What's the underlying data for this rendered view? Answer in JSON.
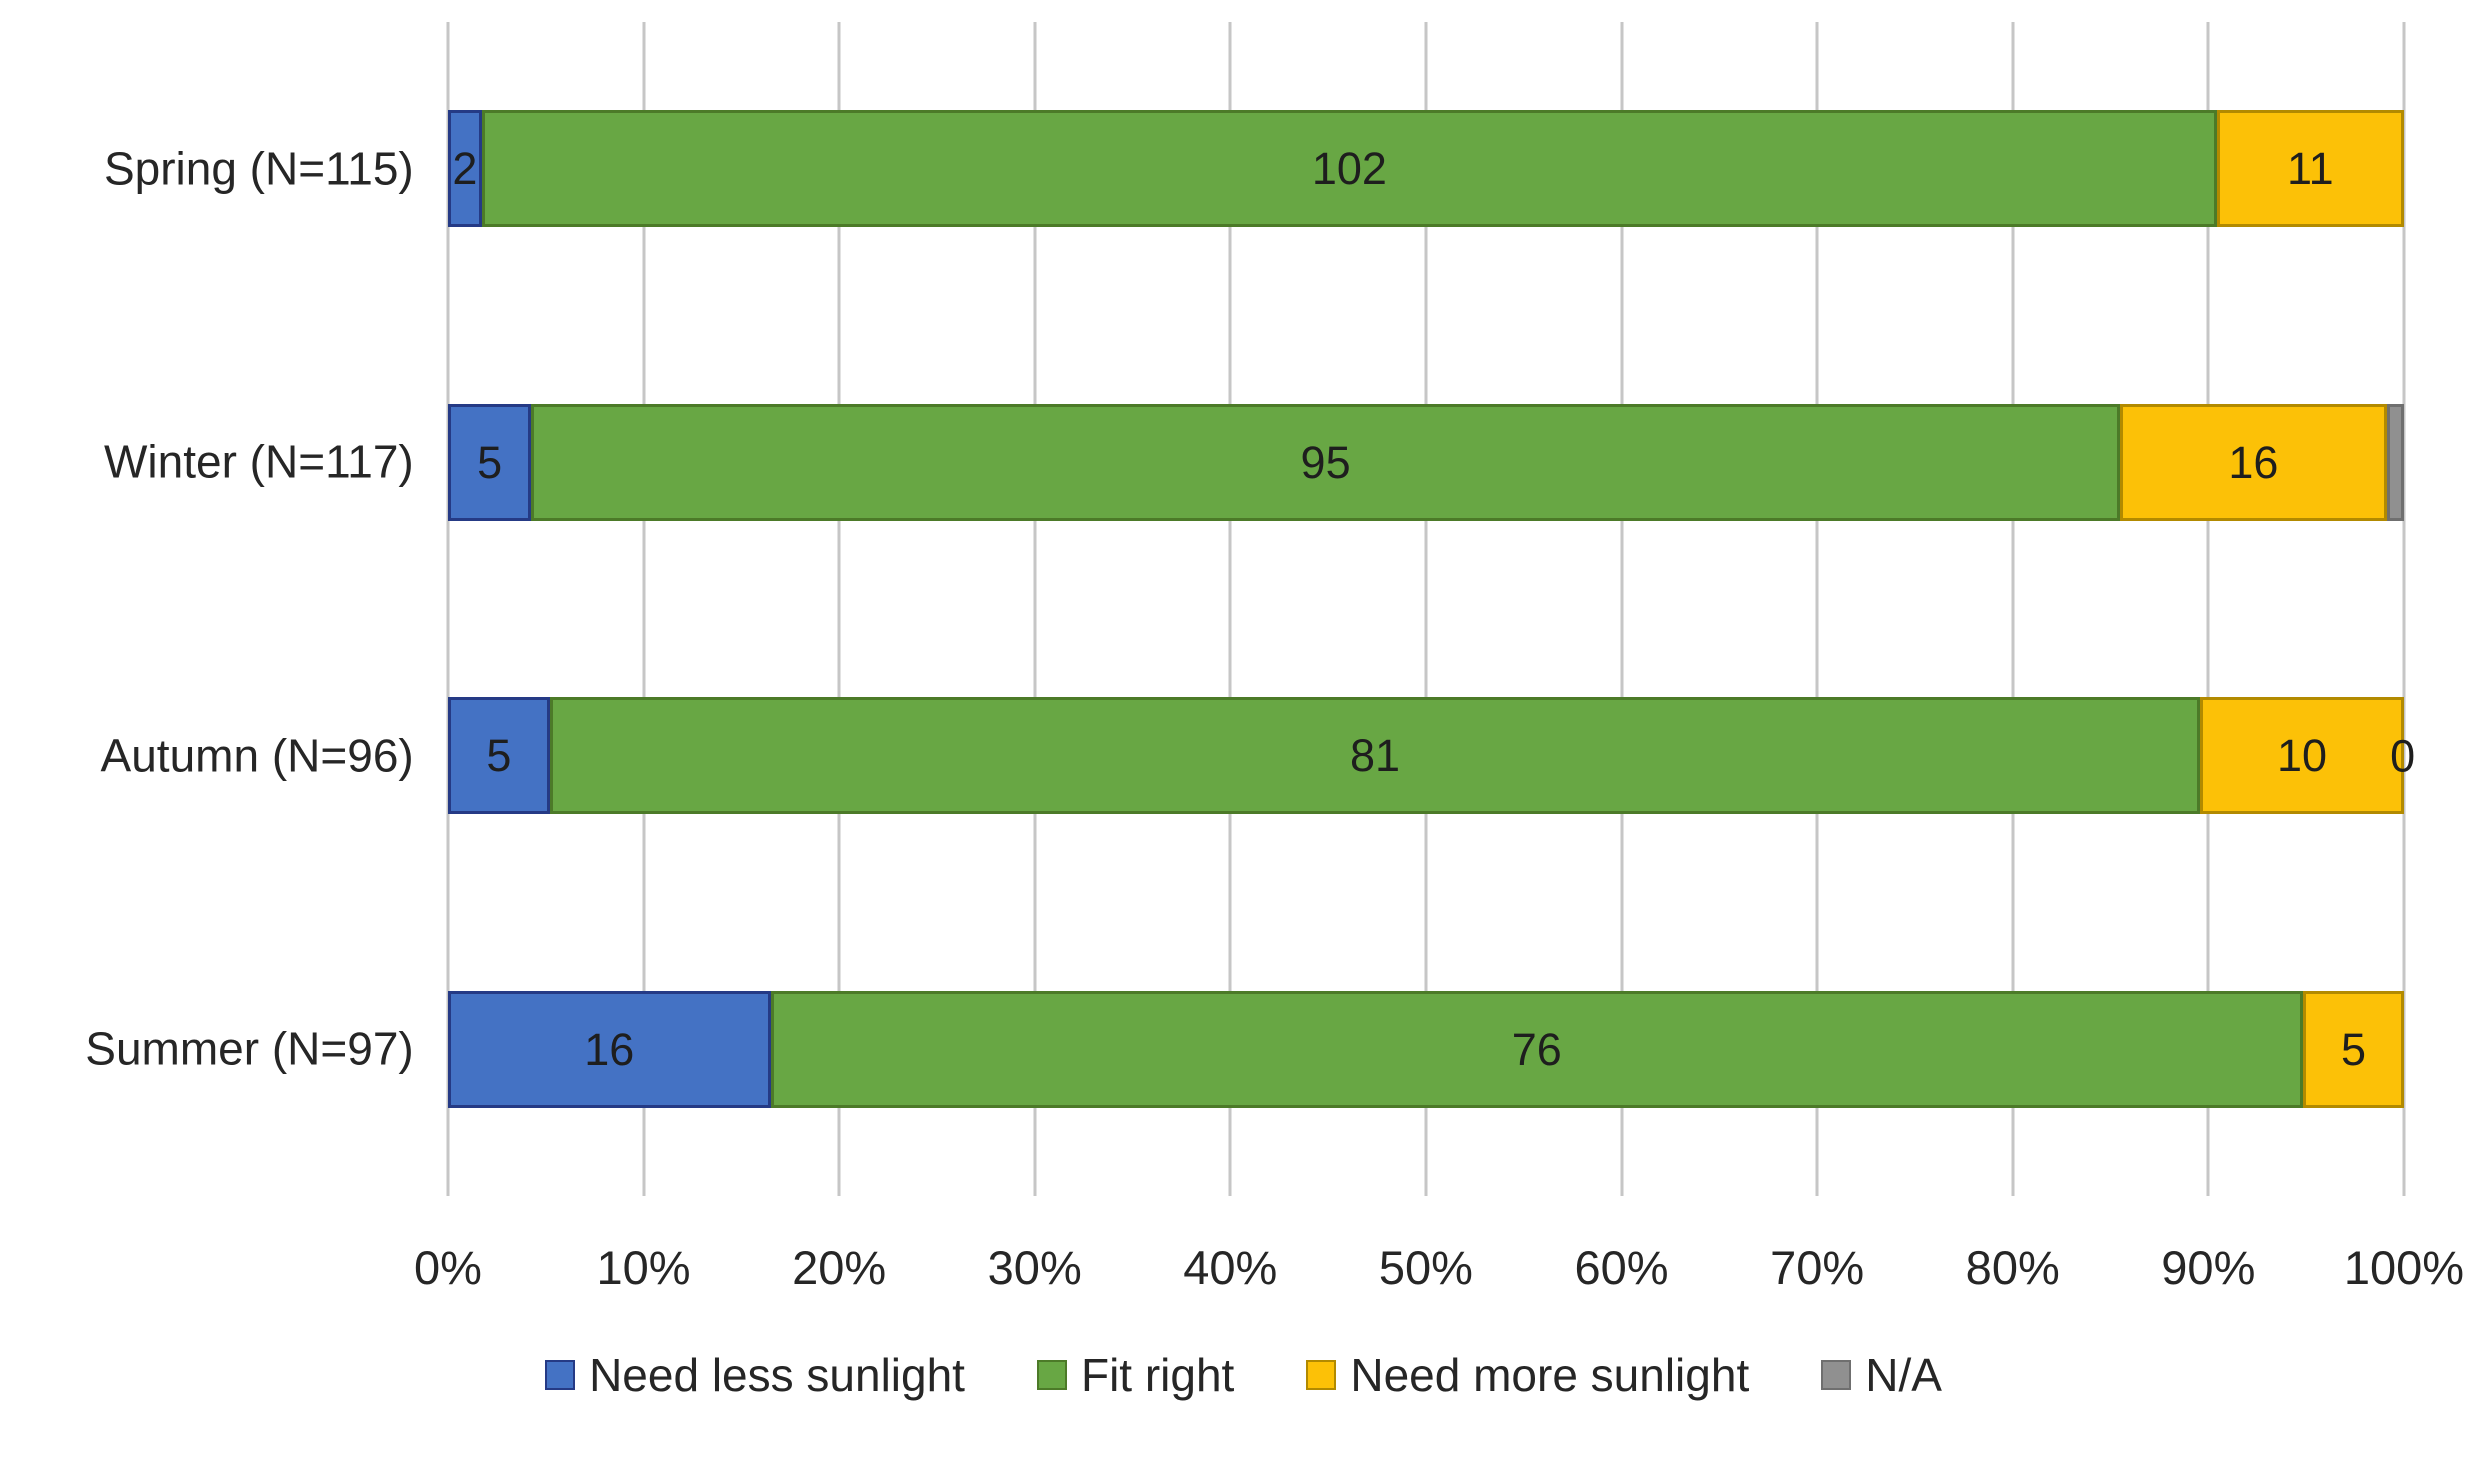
{
  "chart_data": {
    "type": "bar",
    "subtype": "horizontal-stacked-100-percent",
    "title": "",
    "categories": [
      "Spring (N=115)",
      "Winter (N=117)",
      "Autumn (N=96)",
      "Summer (N=97)"
    ],
    "totals": [
      115,
      117,
      96,
      97
    ],
    "series": [
      {
        "name": "Need less sunlight",
        "color": "#4472C4",
        "border_color": "#253A85",
        "values": [
          2,
          5,
          5,
          16
        ],
        "labels": [
          "2",
          "5",
          "5",
          "16"
        ]
      },
      {
        "name": "Fit right",
        "color": "#68A744",
        "border_color": "#4C7A28",
        "values": [
          102,
          95,
          81,
          76
        ],
        "labels": [
          "102",
          "95",
          "81",
          "76"
        ]
      },
      {
        "name": "Need more sunlight",
        "color": "#FCC107",
        "border_color": "#B28A00",
        "values": [
          11,
          16,
          10,
          5
        ],
        "labels": [
          "11",
          "16",
          "10",
          "5"
        ]
      },
      {
        "name": "N/A",
        "color": "#909090",
        "border_color": "#6F6F6F",
        "values": [
          0,
          1,
          0,
          0
        ],
        "labels": [
          "",
          "",
          "0",
          ""
        ]
      }
    ],
    "x_axis": {
      "tick_labels": [
        "0%",
        "10%",
        "20%",
        "30%",
        "40%",
        "50%",
        "60%",
        "70%",
        "80%",
        "90%",
        "100%"
      ],
      "min": 0,
      "max": 100,
      "unit": "percent"
    },
    "legend": {
      "position": "bottom",
      "entries": [
        "Need less sunlight",
        "Fit right",
        "Need more sunlight",
        "N/A"
      ]
    },
    "grid": {
      "vertical": true,
      "color": "#C6C6C6"
    },
    "colors": {
      "background": "#FFFFFF",
      "label_text": "#1E1E1E"
    }
  }
}
